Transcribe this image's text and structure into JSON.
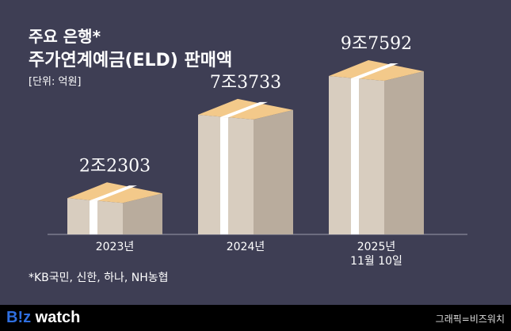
{
  "chart_data": {
    "type": "bar",
    "title": "주요 은행* 주가연계예금(ELD) 판매액",
    "title_line1": "주요 은행*",
    "title_line2": "주가연계예금(ELD) 판매액",
    "unit": "[단위: 억원]",
    "categories": [
      "2023년",
      "2024년",
      "2025년 11월 10일"
    ],
    "category_lines": [
      [
        "2023년"
      ],
      [
        "2024년"
      ],
      [
        "2025년",
        "11월 10일"
      ]
    ],
    "values": [
      22303,
      73733,
      97592
    ],
    "data_labels": [
      "2조2303",
      "7조3733",
      "9조7592"
    ],
    "footnote": "*KB국민, 신한, 하나, NH농협"
  },
  "footer": {
    "logo_b": "B!z",
    "logo_w": " watch",
    "credit": "그래픽=비즈워치"
  },
  "colors": {
    "background": "#3e3e54",
    "front": "#d8cdbf",
    "side": "#b9ac9d",
    "top": "#f3c98a",
    "band": "#ffffff"
  }
}
